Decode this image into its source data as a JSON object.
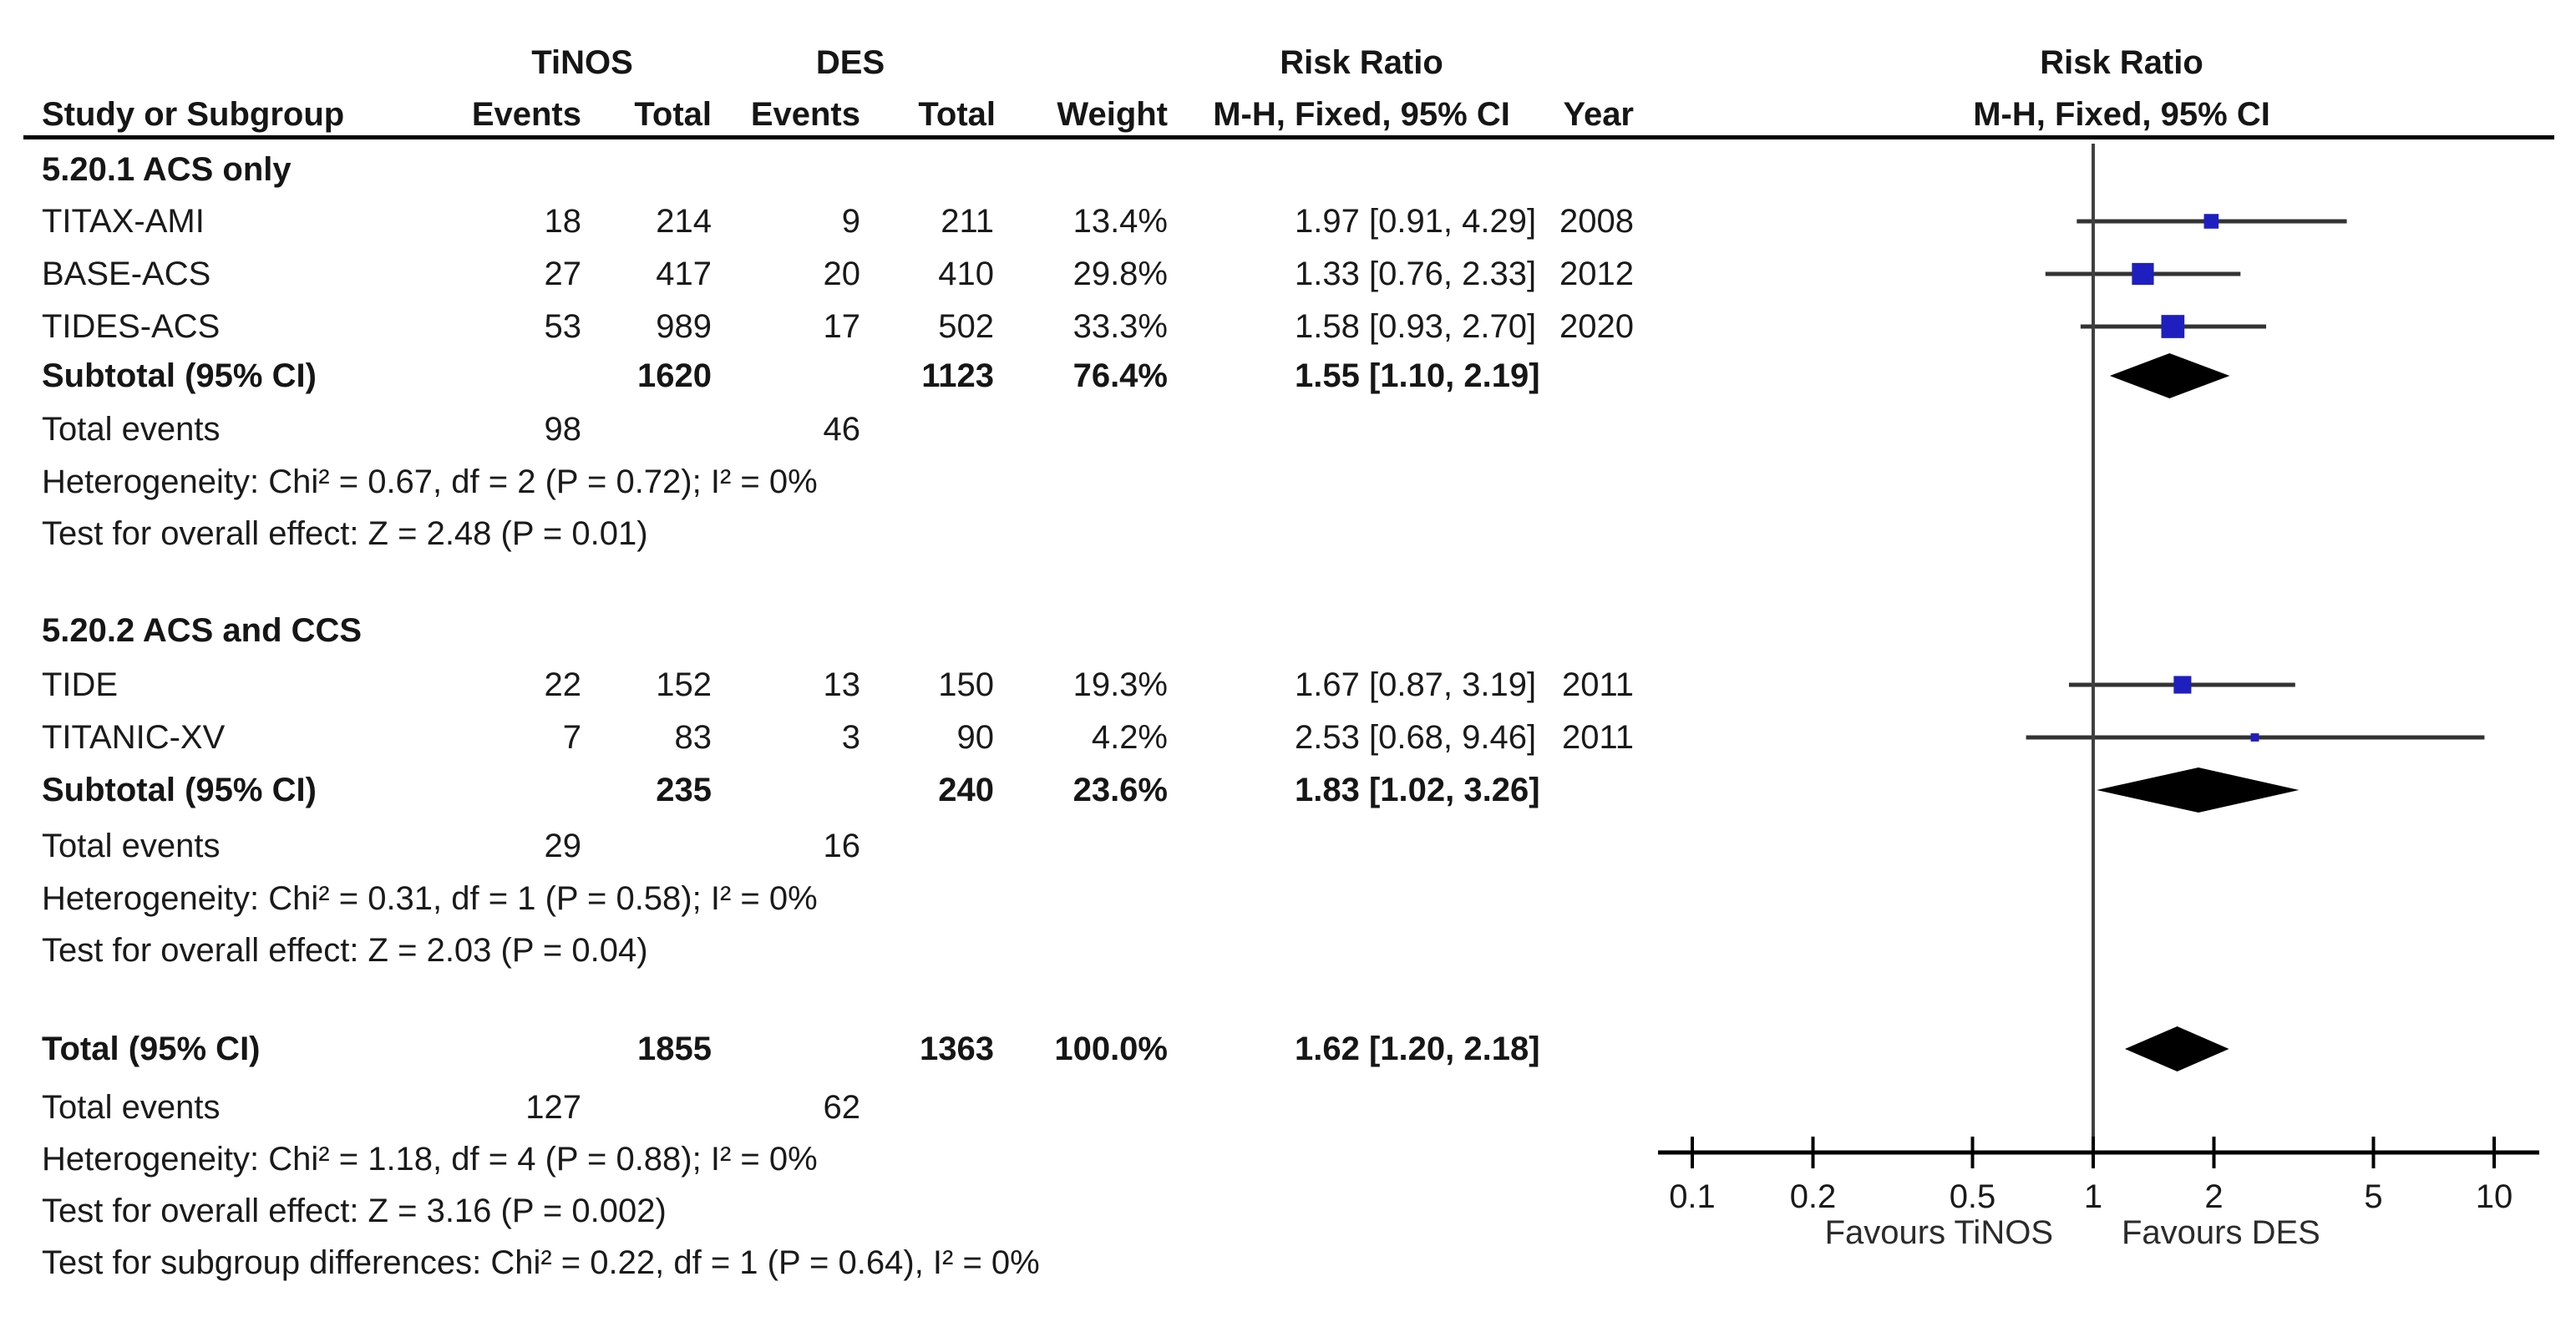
{
  "header": {
    "group1": "TiNOS",
    "group2": "DES",
    "col_study": "Study or Subgroup",
    "col_events": "Events",
    "col_total": "Total",
    "col_events2": "Events",
    "col_total2": "Total",
    "col_weight": "Weight",
    "col_year": "Year",
    "rr_title": "Risk Ratio",
    "rr_method": "M-H, Fixed, 95% CI",
    "rr_title_plot": "Risk Ratio",
    "rr_method_plot": "M-H, Fixed, 95% CI"
  },
  "axis": {
    "ticks": [
      "0.1",
      "0.2",
      "0.5",
      "1",
      "2",
      "5",
      "10"
    ],
    "tick_values": [
      0.1,
      0.2,
      0.5,
      1,
      2,
      5,
      10
    ],
    "favours_left": "Favours TiNOS",
    "favours_right": "Favours DES"
  },
  "colors": {
    "square": "#1F1FC0",
    "diamond": "#000000",
    "ci_line": "#333333",
    "axis_line": "#000000",
    "center_line": "#404040",
    "text": "#1a1a1a"
  },
  "chart_data": {
    "type": "scatter",
    "subtype": "forest-plot-meta-analysis",
    "effect_measure": "Risk Ratio",
    "method": "M-H, Fixed, 95% CI",
    "x_scale": "log10",
    "xlim": [
      0.1,
      10
    ],
    "sections": [
      {
        "title": "5.20.1 ACS only",
        "studies": [
          {
            "study": "TITAX-AMI",
            "tinos_events": "18",
            "tinos_total": "214",
            "des_events": "9",
            "des_total": "211",
            "weight_pct": 13.4,
            "weight_label": "13.4%",
            "rr": 1.97,
            "ci_low": 0.91,
            "ci_high": 4.29,
            "rr_label": "1.97 [0.91, 4.29]",
            "year": "2008"
          },
          {
            "study": "BASE-ACS",
            "tinos_events": "27",
            "tinos_total": "417",
            "des_events": "20",
            "des_total": "410",
            "weight_pct": 29.8,
            "weight_label": "29.8%",
            "rr": 1.33,
            "ci_low": 0.76,
            "ci_high": 2.33,
            "rr_label": "1.33 [0.76, 2.33]",
            "year": "2012"
          },
          {
            "study": "TIDES-ACS",
            "tinos_events": "53",
            "tinos_total": "989",
            "des_events": "17",
            "des_total": "502",
            "weight_pct": 33.3,
            "weight_label": "33.3%",
            "rr": 1.58,
            "ci_low": 0.93,
            "ci_high": 2.7,
            "rr_label": "1.58 [0.93, 2.70]",
            "year": "2020"
          }
        ],
        "subtotal": {
          "label": "Subtotal (95% CI)",
          "tinos_total": "1620",
          "des_total": "1123",
          "weight_label": "76.4%",
          "rr": 1.55,
          "ci_low": 1.1,
          "ci_high": 2.19,
          "rr_label": "1.55 [1.10, 2.19]"
        },
        "total_events": {
          "label": "Total events",
          "tinos": "98",
          "des": "46"
        },
        "heterogeneity": "Heterogeneity: Chi² = 0.67, df = 2 (P = 0.72); I² = 0%",
        "overall_effect": "Test for overall effect: Z = 2.48 (P = 0.01)"
      },
      {
        "title": "5.20.2 ACS and CCS",
        "studies": [
          {
            "study": "TIDE",
            "tinos_events": "22",
            "tinos_total": "152",
            "des_events": "13",
            "des_total": "150",
            "weight_pct": 19.3,
            "weight_label": "19.3%",
            "rr": 1.67,
            "ci_low": 0.87,
            "ci_high": 3.19,
            "rr_label": "1.67 [0.87, 3.19]",
            "year": "2011"
          },
          {
            "study": "TITANIC-XV",
            "tinos_events": "7",
            "tinos_total": "83",
            "des_events": "3",
            "des_total": "90",
            "weight_pct": 4.2,
            "weight_label": "4.2%",
            "rr": 2.53,
            "ci_low": 0.68,
            "ci_high": 9.46,
            "rr_label": "2.53 [0.68, 9.46]",
            "year": "2011"
          }
        ],
        "subtotal": {
          "label": "Subtotal (95% CI)",
          "tinos_total": "235",
          "des_total": "240",
          "weight_label": "23.6%",
          "rr": 1.83,
          "ci_low": 1.02,
          "ci_high": 3.26,
          "rr_label": "1.83 [1.02, 3.26]"
        },
        "total_events": {
          "label": "Total events",
          "tinos": "29",
          "des": "16"
        },
        "heterogeneity": "Heterogeneity: Chi² = 0.31, df = 1 (P = 0.58); I² = 0%",
        "overall_effect": "Test for overall effect: Z = 2.03 (P = 0.04)"
      }
    ],
    "total": {
      "label": "Total (95% CI)",
      "tinos_total": "1855",
      "des_total": "1363",
      "weight_label": "100.0%",
      "rr": 1.62,
      "ci_low": 1.2,
      "ci_high": 2.18,
      "rr_label": "1.62 [1.20, 2.18]",
      "total_events": {
        "label": "Total events",
        "tinos": "127",
        "des": "62"
      },
      "heterogeneity": "Heterogeneity: Chi² = 1.18, df = 4 (P = 0.88); I² = 0%",
      "overall_effect": "Test for overall effect: Z = 3.16 (P = 0.002)",
      "subgroup_differences": "Test for subgroup differences: Chi² = 0.22, df = 1 (P = 0.64), I² = 0%"
    }
  }
}
